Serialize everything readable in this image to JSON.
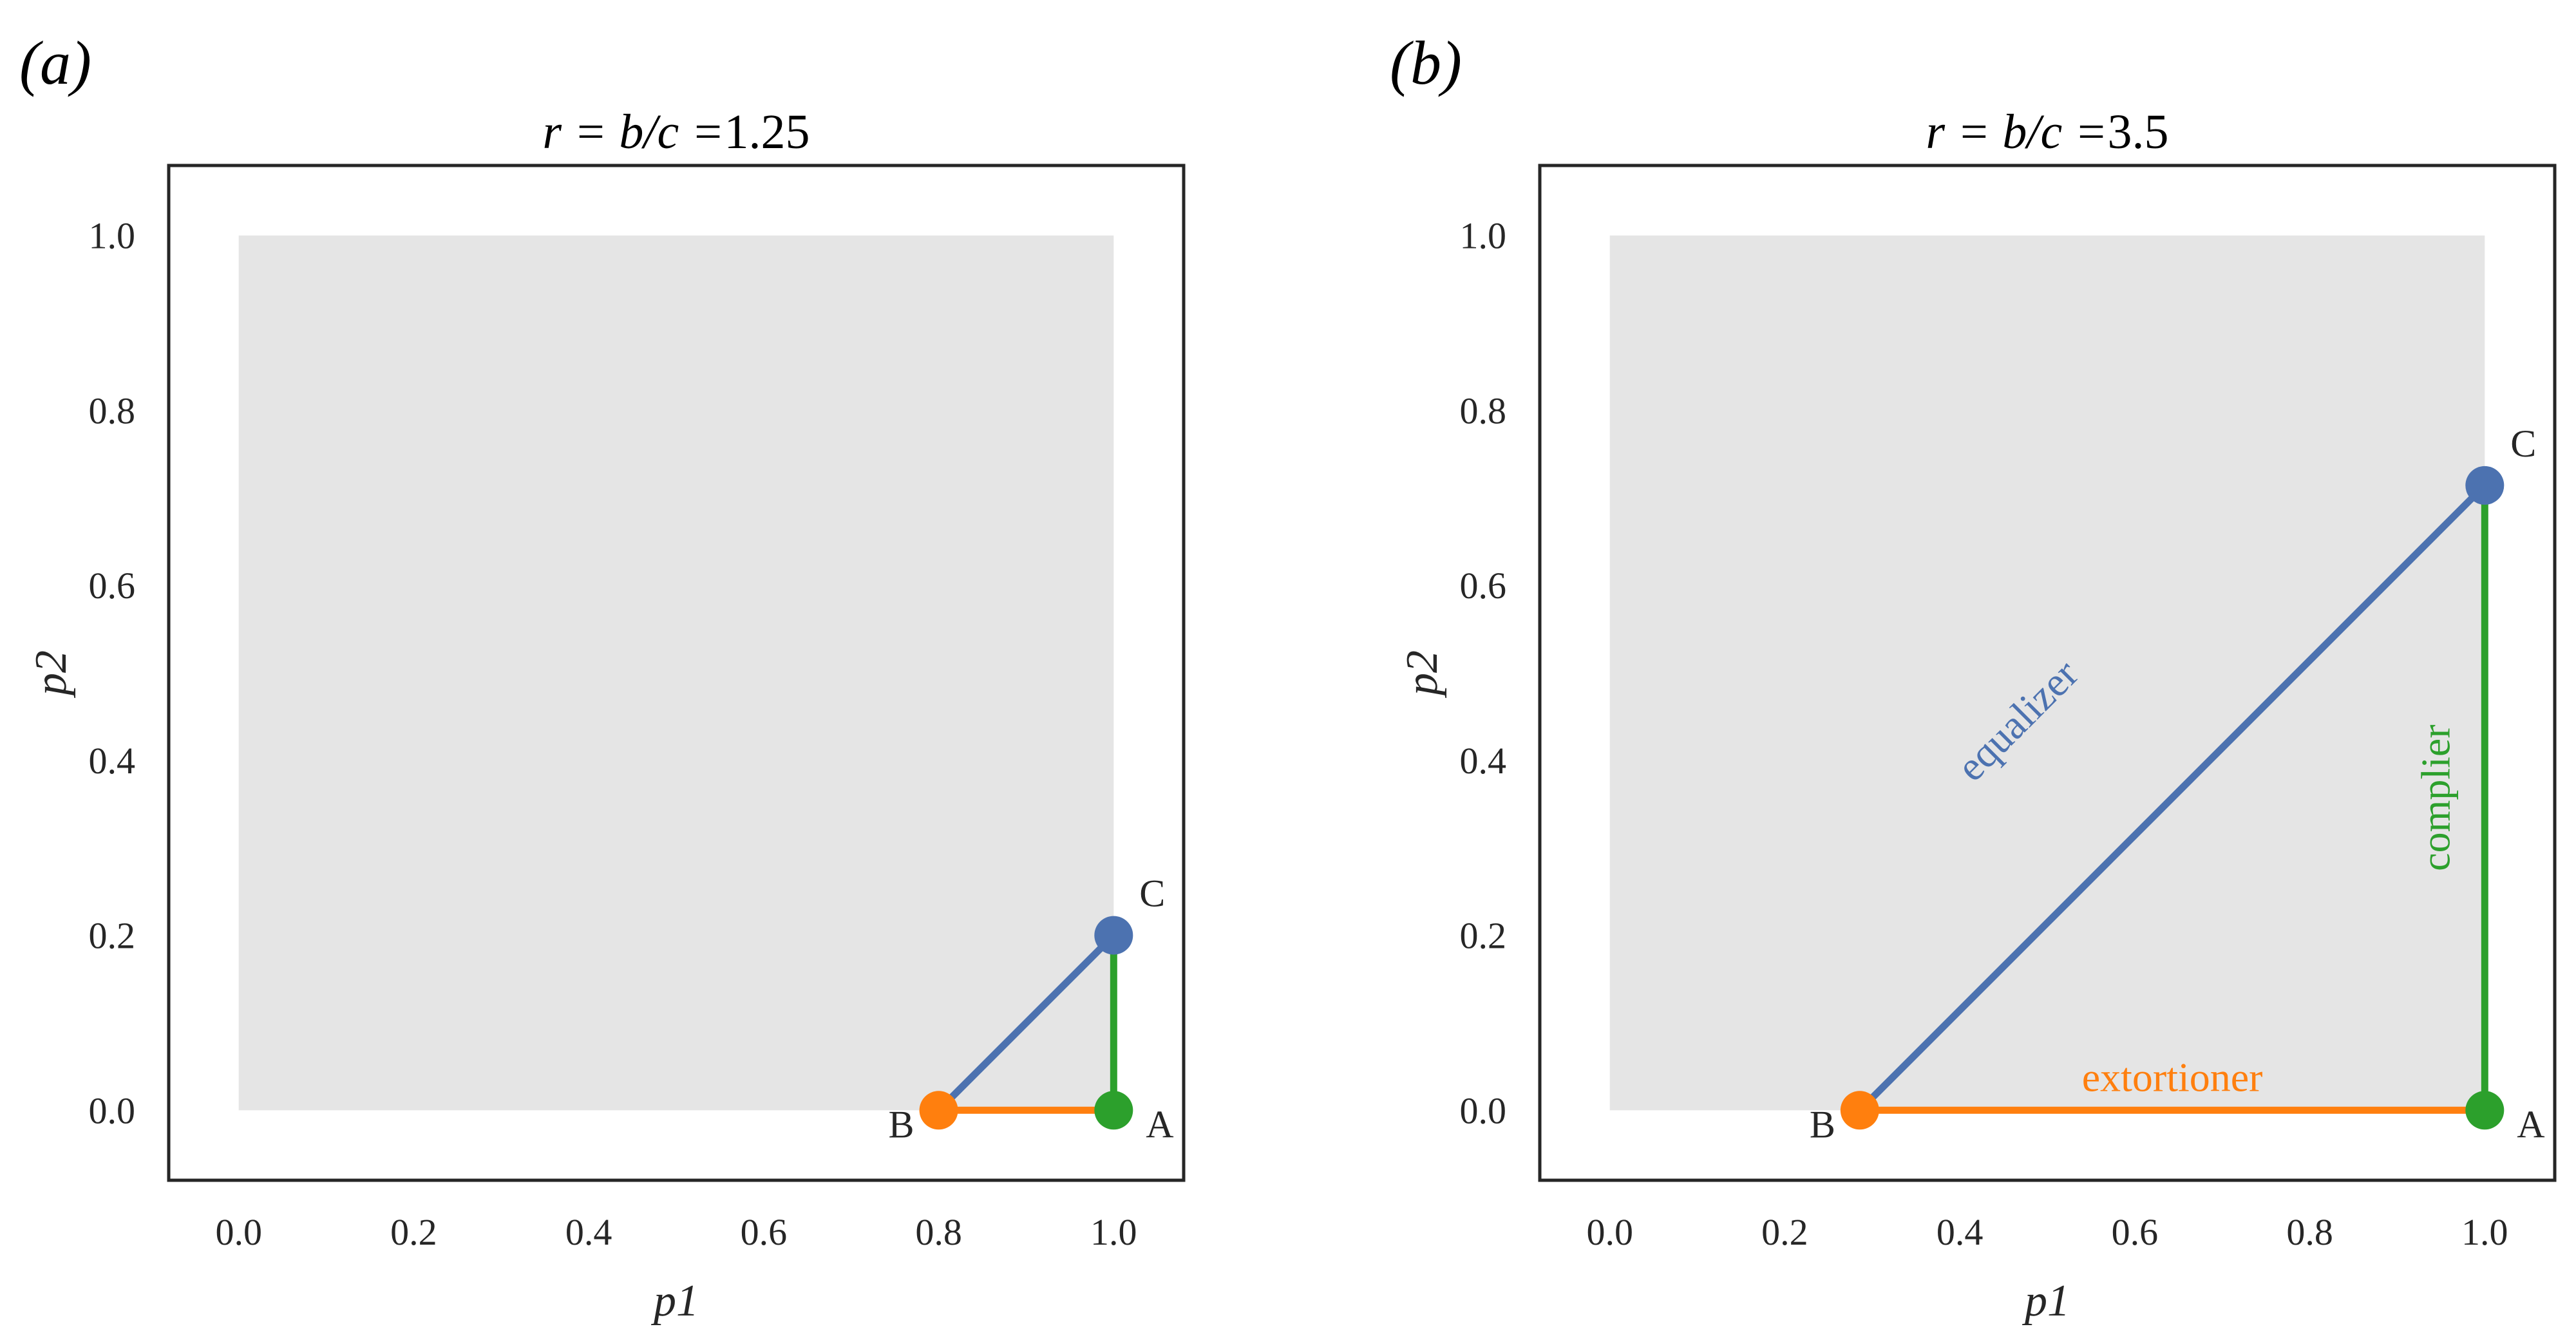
{
  "chart_data": [
    {
      "type": "scatter",
      "panel_label": "(a)",
      "title_prefix": "r = b/c =",
      "title_value": "1.25",
      "xlabel": "p1",
      "ylabel": "p2",
      "xlim": [
        -0.08,
        1.08
      ],
      "ylim": [
        -0.08,
        1.08
      ],
      "xticks": [
        "0.0",
        "0.2",
        "0.4",
        "0.6",
        "0.8",
        "1.0"
      ],
      "yticks": [
        "0.0",
        "0.2",
        "0.4",
        "0.6",
        "0.8",
        "1.0"
      ],
      "grid": false,
      "feasible_region": {
        "x": [
          0,
          1
        ],
        "y": [
          0,
          1
        ],
        "color": "#e5e5e5"
      },
      "points": [
        {
          "name": "A",
          "x": 1.0,
          "y": 0.0,
          "color": "#2ca02c"
        },
        {
          "name": "B",
          "x": 0.8,
          "y": 0.0,
          "color": "#ff7f0e"
        },
        {
          "name": "C",
          "x": 1.0,
          "y": 0.2,
          "color": "#4c72b0"
        }
      ],
      "segments": [
        {
          "from": "B",
          "to": "A",
          "color": "#ff7f0e",
          "label": ""
        },
        {
          "from": "A",
          "to": "C",
          "color": "#2ca02c",
          "label": ""
        },
        {
          "from": "B",
          "to": "C",
          "color": "#4c72b0",
          "label": ""
        }
      ]
    },
    {
      "type": "scatter",
      "panel_label": "(b)",
      "title_prefix": "r = b/c =",
      "title_value": "3.5",
      "xlabel": "p1",
      "ylabel": "p2",
      "xlim": [
        -0.08,
        1.08
      ],
      "ylim": [
        -0.08,
        1.08
      ],
      "xticks": [
        "0.0",
        "0.2",
        "0.4",
        "0.6",
        "0.8",
        "1.0"
      ],
      "yticks": [
        "0.0",
        "0.2",
        "0.4",
        "0.6",
        "0.8",
        "1.0"
      ],
      "grid": false,
      "feasible_region": {
        "x": [
          0,
          1
        ],
        "y": [
          0,
          1
        ],
        "color": "#e5e5e5"
      },
      "points": [
        {
          "name": "A",
          "x": 1.0,
          "y": 0.0,
          "color": "#2ca02c"
        },
        {
          "name": "B",
          "x": 0.2857,
          "y": 0.0,
          "color": "#ff7f0e"
        },
        {
          "name": "C",
          "x": 1.0,
          "y": 0.7143,
          "color": "#4c72b0"
        }
      ],
      "segments": [
        {
          "from": "B",
          "to": "A",
          "color": "#ff7f0e",
          "label": "extortioner"
        },
        {
          "from": "A",
          "to": "C",
          "color": "#2ca02c",
          "label": "complier"
        },
        {
          "from": "B",
          "to": "C",
          "color": "#4c72b0",
          "label": "equalizer"
        }
      ]
    }
  ]
}
